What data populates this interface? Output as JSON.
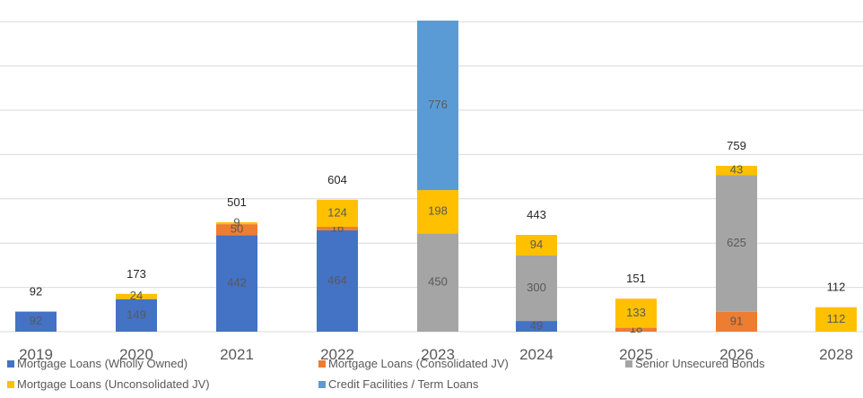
{
  "chart_data": {
    "type": "bar",
    "stacked": true,
    "categories": [
      "2019",
      "2020",
      "2021",
      "2022",
      "2023",
      "2024",
      "2025",
      "2026",
      "2028"
    ],
    "series": [
      {
        "name": "Mortgage Loans (Wholly Owned)",
        "color": "#4472c4",
        "values": [
          92,
          149,
          442,
          464,
          0,
          49,
          0,
          0,
          0
        ]
      },
      {
        "name": "Mortgage Loans (Consolidated JV)",
        "color": "#ed7d31",
        "values": [
          0,
          0,
          50,
          16,
          0,
          0,
          18,
          91,
          0
        ]
      },
      {
        "name": "Senior Unsecured Bonds",
        "color": "#a5a5a5",
        "values": [
          0,
          0,
          0,
          0,
          450,
          300,
          0,
          625,
          0
        ]
      },
      {
        "name": "Mortgage Loans (Unconsolidated JV)",
        "color": "#ffc000",
        "values": [
          0,
          24,
          9,
          124,
          198,
          94,
          133,
          43,
          112
        ]
      },
      {
        "name": "Credit Facilities / Term Loans",
        "color": "#5b9bd5",
        "values": [
          0,
          0,
          0,
          0,
          776,
          0,
          0,
          0,
          0
        ]
      }
    ],
    "totals": [
      "92",
      "173",
      "501",
      "604",
      "",
      "443",
      "151",
      "759",
      "112"
    ],
    "ylim": [
      0,
      1420
    ],
    "grid": true,
    "legend": "bottom"
  }
}
